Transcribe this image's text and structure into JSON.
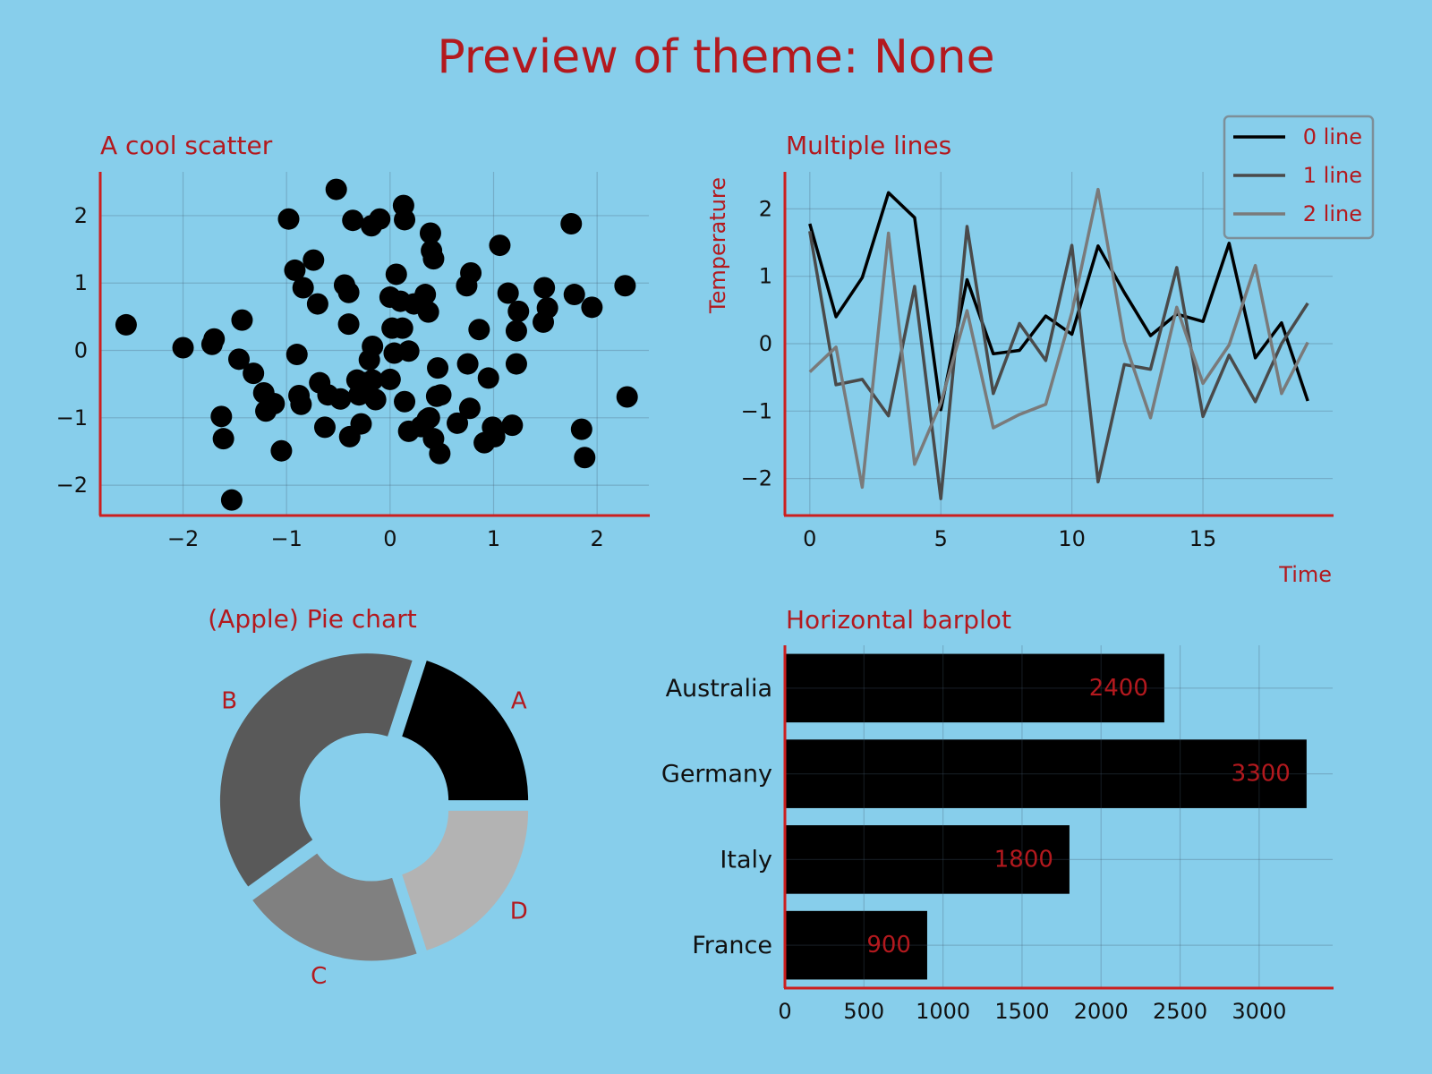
{
  "figure": {
    "title": "Preview of theme: None",
    "background": "#87CEEB",
    "text_color": "#B3191E",
    "tick_color": "#111111",
    "spine_color": "#CC1F1F"
  },
  "chart_data": [
    {
      "type": "scatter",
      "title": "A cool scatter",
      "xlabel": "",
      "ylabel": "",
      "xlim": [
        -2.8,
        2.5
      ],
      "ylim": [
        -2.45,
        2.65
      ],
      "xticks": [
        -2,
        -1,
        0,
        1,
        2
      ],
      "yticks": [
        -2,
        -1,
        0,
        1,
        2
      ],
      "grid": true,
      "color": "#000000",
      "points": [
        [
          -2.55,
          0.38
        ],
        [
          -2.0,
          0.04
        ],
        [
          -1.72,
          0.09
        ],
        [
          -1.7,
          0.17
        ],
        [
          -1.63,
          -0.98
        ],
        [
          -1.61,
          -1.31
        ],
        [
          -1.53,
          -2.22
        ],
        [
          -1.46,
          -0.13
        ],
        [
          -1.43,
          0.45
        ],
        [
          -1.32,
          -0.34
        ],
        [
          -1.22,
          -0.63
        ],
        [
          -1.2,
          -0.9
        ],
        [
          -1.12,
          -0.79
        ],
        [
          -1.05,
          -1.49
        ],
        [
          -0.98,
          1.95
        ],
        [
          -0.92,
          1.19
        ],
        [
          -0.9,
          -0.06
        ],
        [
          -0.88,
          -0.67
        ],
        [
          -0.86,
          -0.8
        ],
        [
          -0.84,
          0.93
        ],
        [
          -0.74,
          1.34
        ],
        [
          -0.7,
          0.69
        ],
        [
          -0.68,
          -0.48
        ],
        [
          -0.63,
          -1.14
        ],
        [
          -0.6,
          -0.66
        ],
        [
          -0.52,
          2.39
        ],
        [
          -0.48,
          -0.72
        ],
        [
          -0.44,
          0.97
        ],
        [
          -0.4,
          0.86
        ],
        [
          -0.4,
          0.39
        ],
        [
          -0.39,
          -1.28
        ],
        [
          -0.36,
          1.93
        ],
        [
          -0.32,
          -0.44
        ],
        [
          -0.3,
          -0.66
        ],
        [
          -0.28,
          -1.09
        ],
        [
          -0.25,
          -0.48
        ],
        [
          -0.2,
          -0.14
        ],
        [
          -0.18,
          1.85
        ],
        [
          -0.17,
          -0.44
        ],
        [
          -0.17,
          0.06
        ],
        [
          -0.14,
          -0.73
        ],
        [
          -0.1,
          1.95
        ],
        [
          0.0,
          0.79
        ],
        [
          0.0,
          -0.43
        ],
        [
          0.02,
          0.33
        ],
        [
          0.04,
          -0.04
        ],
        [
          0.06,
          1.13
        ],
        [
          0.1,
          0.73
        ],
        [
          0.12,
          0.33
        ],
        [
          0.14,
          -0.76
        ],
        [
          0.13,
          2.15
        ],
        [
          0.14,
          1.94
        ],
        [
          0.18,
          -0.01
        ],
        [
          0.18,
          -1.2
        ],
        [
          0.23,
          0.69
        ],
        [
          0.3,
          -1.13
        ],
        [
          0.34,
          0.83
        ],
        [
          0.36,
          -1.02
        ],
        [
          0.37,
          0.57
        ],
        [
          0.38,
          -1.0
        ],
        [
          0.39,
          1.74
        ],
        [
          0.4,
          1.48
        ],
        [
          0.42,
          1.36
        ],
        [
          0.42,
          -1.31
        ],
        [
          0.45,
          -0.68
        ],
        [
          0.46,
          -0.26
        ],
        [
          0.48,
          -1.53
        ],
        [
          0.49,
          -0.66
        ],
        [
          0.65,
          -1.08
        ],
        [
          0.74,
          0.96
        ],
        [
          0.75,
          -0.2
        ],
        [
          0.78,
          1.15
        ],
        [
          0.77,
          -0.86
        ],
        [
          0.86,
          0.31
        ],
        [
          0.91,
          -1.37
        ],
        [
          0.95,
          -0.41
        ],
        [
          0.99,
          -1.14
        ],
        [
          1.01,
          -1.28
        ],
        [
          1.06,
          1.56
        ],
        [
          1.14,
          0.85
        ],
        [
          1.18,
          -1.11
        ],
        [
          1.22,
          0.29
        ],
        [
          1.22,
          -0.2
        ],
        [
          1.24,
          0.58
        ],
        [
          1.48,
          0.42
        ],
        [
          1.49,
          0.93
        ],
        [
          1.52,
          0.63
        ],
        [
          1.75,
          1.88
        ],
        [
          1.78,
          0.83
        ],
        [
          1.85,
          -1.17
        ],
        [
          1.88,
          -1.59
        ],
        [
          1.95,
          0.64
        ],
        [
          2.27,
          0.96
        ],
        [
          2.29,
          -0.69
        ]
      ]
    },
    {
      "type": "line",
      "title": "Multiple lines",
      "xlabel": "Time",
      "ylabel": "Temperature",
      "xlim": [
        -0.95,
        19.95
      ],
      "ylim": [
        -2.55,
        2.55
      ],
      "xticks": [
        0,
        5,
        10,
        15
      ],
      "yticks": [
        -2,
        -1,
        0,
        1,
        2
      ],
      "grid": true,
      "legend": "top-right",
      "x": [
        0,
        1,
        2,
        3,
        4,
        5,
        6,
        7,
        8,
        9,
        10,
        11,
        12,
        13,
        14,
        15,
        16,
        17,
        18,
        19
      ],
      "series": [
        {
          "name": "0 line",
          "color": "#000000",
          "values": [
            1.78,
            0.4,
            0.98,
            2.24,
            1.87,
            -0.98,
            0.95,
            -0.15,
            -0.1,
            0.41,
            0.14,
            1.45,
            0.76,
            0.12,
            0.44,
            0.33,
            1.49,
            -0.21,
            0.31,
            -0.85
          ]
        },
        {
          "name": "1 line",
          "color": "#4A4A4A",
          "values": [
            1.67,
            -0.61,
            -0.53,
            -1.07,
            0.85,
            -2.3,
            1.74,
            -0.74,
            0.3,
            -0.25,
            1.46,
            -2.05,
            -0.31,
            -0.38,
            1.13,
            -1.08,
            -0.17,
            -0.86,
            0.0,
            0.6
          ]
        },
        {
          "name": "2 line",
          "color": "#7A7A7A",
          "values": [
            -0.42,
            -0.05,
            -2.13,
            1.64,
            -1.79,
            -0.88,
            0.49,
            -1.25,
            -1.05,
            -0.9,
            0.46,
            2.29,
            0.04,
            -1.1,
            0.54,
            -0.59,
            -0.02,
            1.16,
            -0.74,
            0.02
          ]
        }
      ]
    },
    {
      "type": "pie",
      "title": "(Apple) Pie chart",
      "donut": true,
      "labels": [
        "A",
        "B",
        "C",
        "D"
      ],
      "values": [
        20,
        40,
        20,
        20
      ],
      "colors": [
        "#000000",
        "#595959",
        "#808080",
        "#B3B3B3"
      ]
    },
    {
      "type": "bar",
      "orientation": "horizontal",
      "title": "Horizontal barplot",
      "xlabel": "",
      "ylabel": "",
      "categories": [
        "Australia",
        "Germany",
        "Italy",
        "France"
      ],
      "values": [
        2400,
        3300,
        1800,
        900
      ],
      "data_labels": [
        "2400",
        "3300",
        "1800",
        "900"
      ],
      "xlim": [
        0,
        3465
      ],
      "xticks": [
        0,
        500,
        1000,
        1500,
        2000,
        2500,
        3000
      ],
      "grid": true,
      "color": "#000000"
    }
  ]
}
